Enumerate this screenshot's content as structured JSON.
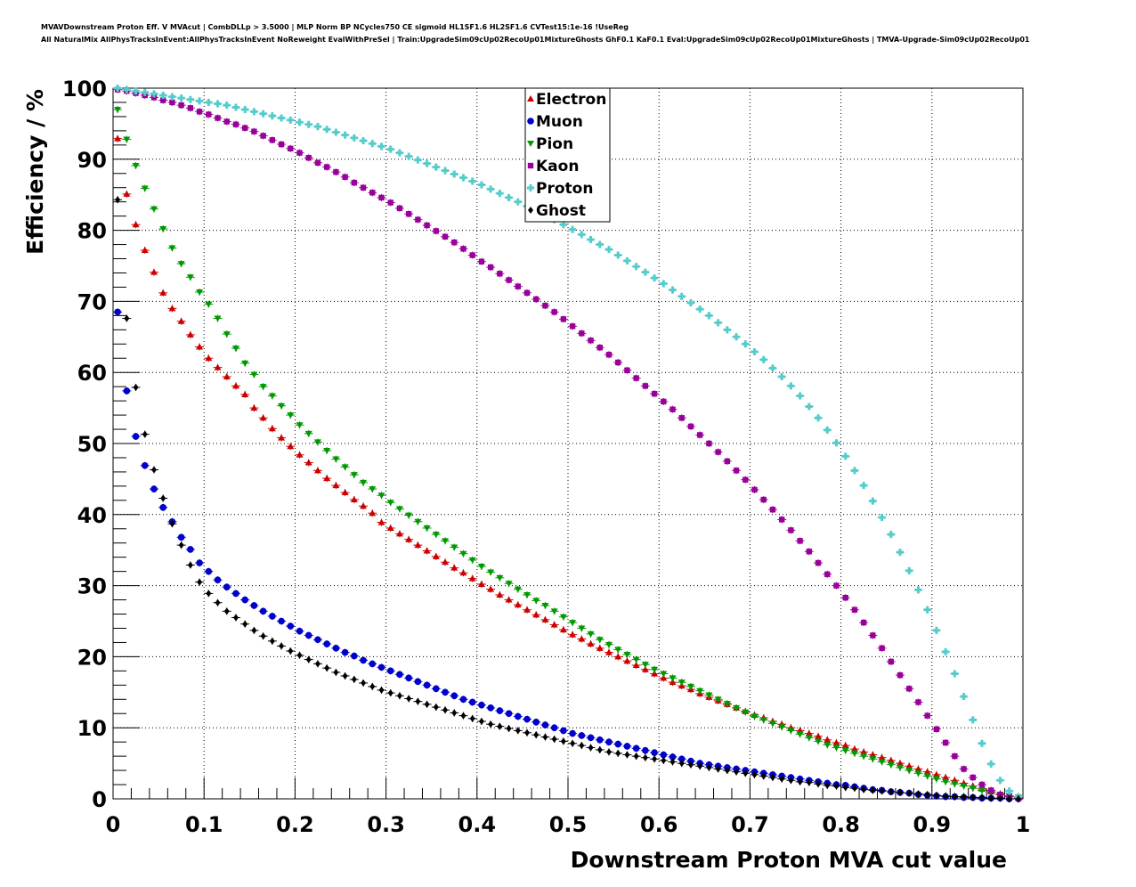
{
  "header": {
    "title_line1": "MVAVDownstream Proton Eff. V MVAcut | CombDLLp > 3.5000 | MLP Norm BP NCycles750 CE sigmoid HL1SF1.6 HL2SF1.6 CVTest15:1e-16 !UseReg",
    "title_line2": "All NaturalMix AllPhysTracksInEvent:AllPhysTracksInEvent NoReweight EvalWithPreSel | Train:UpgradeSim09cUp02RecoUp01MixtureGhosts GhF0.1 KaF0.1 Eval:UpgradeSim09cUp02RecoUp01MixtureGhosts | TMVA-Upgrade-Sim09cUp02RecoUp01"
  },
  "chart_data": {
    "type": "scatter",
    "title": "",
    "xlabel": "Downstream Proton MVA cut value",
    "ylabel": "Efficiency / %",
    "xlim": [
      0,
      1
    ],
    "ylim": [
      0,
      100
    ],
    "grid": true,
    "legend_position": "top-center",
    "xticks": [
      0,
      0.1,
      0.2,
      0.3,
      0.4,
      0.5,
      0.6,
      0.7,
      0.8,
      0.9,
      1
    ],
    "xtick_labels": [
      "0",
      "0.1",
      "0.2",
      "0.3",
      "0.4",
      "0.5",
      "0.6",
      "0.7",
      "0.8",
      "0.9",
      "1"
    ],
    "yticks": [
      0,
      10,
      20,
      30,
      40,
      50,
      60,
      70,
      80,
      90,
      100
    ],
    "ytick_labels": [
      "0",
      "10",
      "20",
      "30",
      "40",
      "50",
      "60",
      "70",
      "80",
      "90",
      "100"
    ],
    "x": [
      0.005,
      0.015,
      0.025,
      0.035,
      0.045,
      0.055,
      0.065,
      0.075,
      0.085,
      0.095,
      0.105,
      0.115,
      0.125,
      0.135,
      0.145,
      0.155,
      0.165,
      0.175,
      0.185,
      0.195,
      0.205,
      0.215,
      0.225,
      0.235,
      0.245,
      0.255,
      0.265,
      0.275,
      0.285,
      0.295,
      0.305,
      0.315,
      0.325,
      0.335,
      0.345,
      0.355,
      0.365,
      0.375,
      0.385,
      0.395,
      0.405,
      0.415,
      0.425,
      0.435,
      0.445,
      0.455,
      0.465,
      0.475,
      0.485,
      0.495,
      0.505,
      0.515,
      0.525,
      0.535,
      0.545,
      0.555,
      0.565,
      0.575,
      0.585,
      0.595,
      0.605,
      0.615,
      0.625,
      0.635,
      0.645,
      0.655,
      0.665,
      0.675,
      0.685,
      0.695,
      0.705,
      0.715,
      0.725,
      0.735,
      0.745,
      0.755,
      0.765,
      0.775,
      0.785,
      0.795,
      0.805,
      0.815,
      0.825,
      0.835,
      0.845,
      0.855,
      0.865,
      0.875,
      0.885,
      0.895,
      0.905,
      0.915,
      0.925,
      0.935,
      0.945,
      0.955,
      0.965,
      0.975,
      0.985,
      0.995
    ],
    "series": [
      {
        "name": "Electron",
        "color": "#cc0000",
        "marker": "triangle-up",
        "values": [
          92.9,
          85.1,
          80.8,
          77.2,
          74.1,
          71.2,
          69.0,
          67.2,
          65.3,
          63.6,
          62.0,
          60.7,
          59.4,
          58.1,
          56.9,
          55.0,
          53.6,
          52.1,
          50.8,
          49.6,
          48.4,
          47.3,
          46.2,
          45.1,
          44.1,
          43.1,
          42.1,
          41.2,
          40.2,
          38.9,
          38.1,
          37.3,
          36.5,
          35.7,
          34.9,
          34.1,
          33.3,
          32.5,
          31.8,
          31.0,
          30.2,
          29.5,
          28.7,
          28.0,
          27.3,
          26.6,
          25.9,
          25.2,
          24.5,
          23.8,
          23.1,
          22.5,
          21.8,
          21.2,
          20.6,
          20.0,
          19.4,
          18.8,
          18.2,
          17.6,
          17.0,
          16.4,
          15.9,
          15.4,
          14.8,
          14.3,
          13.8,
          13.3,
          12.8,
          12.3,
          11.8,
          11.4,
          10.9,
          10.5,
          10.0,
          9.6,
          9.2,
          8.8,
          8.3,
          7.9,
          7.5,
          7.0,
          6.6,
          6.2,
          5.8,
          5.4,
          5.0,
          4.6,
          4.2,
          3.8,
          3.4,
          3.0,
          2.6,
          2.2,
          1.8,
          1.4,
          1.0,
          0.7,
          0.4,
          0.1
        ]
      },
      {
        "name": "Muon",
        "color": "#0000cc",
        "marker": "circle",
        "values": [
          68.5,
          57.4,
          51.0,
          46.9,
          43.6,
          41.0,
          39.0,
          36.8,
          35.1,
          33.2,
          32.0,
          30.8,
          29.8,
          28.9,
          28.0,
          27.2,
          26.4,
          25.7,
          25.0,
          24.3,
          23.6,
          23.0,
          22.4,
          21.8,
          21.2,
          20.6,
          20.1,
          19.5,
          19.0,
          18.5,
          18.0,
          17.5,
          17.0,
          16.5,
          16.0,
          15.5,
          15.0,
          14.5,
          14.0,
          13.6,
          13.2,
          12.8,
          12.4,
          12.0,
          11.6,
          11.2,
          10.8,
          10.4,
          10.0,
          9.6,
          9.2,
          8.9,
          8.6,
          8.3,
          8.0,
          7.7,
          7.4,
          7.1,
          6.8,
          6.5,
          6.2,
          5.9,
          5.6,
          5.3,
          5.0,
          4.8,
          4.6,
          4.4,
          4.2,
          4.0,
          3.8,
          3.6,
          3.4,
          3.2,
          3.0,
          2.8,
          2.6,
          2.4,
          2.2,
          2.0,
          1.9,
          1.7,
          1.5,
          1.3,
          1.2,
          1.0,
          0.9,
          0.8,
          0.6,
          0.5,
          0.4,
          0.3,
          0.3,
          0.2,
          0.2,
          0.1,
          0.1,
          0.1,
          0.0,
          0.0
        ]
      },
      {
        "name": "Pion",
        "color": "#009900",
        "marker": "triangle-down",
        "values": [
          97.0,
          92.8,
          89.1,
          85.9,
          83.0,
          80.2,
          77.5,
          75.3,
          73.4,
          71.3,
          69.6,
          67.6,
          65.4,
          63.4,
          61.3,
          59.7,
          58.0,
          56.7,
          55.3,
          54.0,
          52.6,
          51.4,
          50.2,
          49.0,
          47.8,
          46.7,
          45.6,
          44.5,
          43.6,
          42.7,
          41.7,
          40.8,
          39.9,
          39.0,
          38.1,
          37.2,
          36.3,
          35.4,
          34.5,
          33.6,
          32.7,
          31.9,
          31.1,
          30.3,
          29.5,
          28.7,
          27.9,
          27.2,
          26.4,
          25.6,
          24.8,
          24.0,
          23.2,
          22.4,
          21.7,
          21.0,
          20.3,
          19.6,
          18.9,
          18.2,
          17.6,
          17.0,
          16.4,
          15.8,
          15.2,
          14.6,
          14.0,
          13.4,
          12.8,
          12.2,
          11.6,
          11.1,
          10.6,
          10.1,
          9.6,
          9.1,
          8.6,
          8.1,
          7.6,
          7.2,
          6.8,
          6.4,
          6.0,
          5.6,
          5.2,
          4.8,
          4.4,
          4.0,
          3.6,
          3.2,
          2.8,
          2.4,
          2.1,
          1.8,
          1.5,
          1.2,
          0.9,
          0.6,
          0.4,
          0.2
        ]
      },
      {
        "name": "Kaon",
        "color": "#990099",
        "marker": "square",
        "values": [
          99.8,
          99.6,
          99.3,
          99.0,
          98.7,
          98.3,
          98.0,
          97.6,
          97.2,
          96.7,
          96.3,
          95.8,
          95.3,
          94.9,
          94.4,
          93.9,
          93.3,
          92.7,
          92.1,
          91.5,
          90.9,
          90.2,
          89.5,
          88.9,
          88.2,
          87.5,
          86.7,
          86.0,
          85.3,
          84.6,
          83.9,
          83.1,
          82.3,
          81.5,
          80.7,
          79.9,
          79.1,
          78.3,
          77.4,
          76.5,
          75.6,
          74.8,
          73.9,
          73.0,
          72.1,
          71.2,
          70.3,
          69.4,
          68.5,
          67.5,
          66.5,
          65.5,
          64.5,
          63.5,
          62.5,
          61.4,
          60.3,
          59.2,
          58.1,
          57.0,
          55.9,
          54.8,
          53.6,
          52.4,
          51.2,
          50.0,
          48.8,
          47.5,
          46.2,
          44.9,
          43.5,
          42.1,
          40.7,
          39.3,
          37.8,
          36.3,
          34.8,
          33.2,
          31.6,
          30.0,
          28.3,
          26.6,
          24.8,
          23.0,
          21.2,
          19.3,
          17.4,
          15.5,
          13.6,
          11.7,
          9.8,
          7.9,
          6.0,
          4.2,
          3.0,
          2.0,
          1.2,
          0.6,
          0.3,
          0.1
        ]
      },
      {
        "name": "Proton",
        "color": "#55cccc",
        "marker": "cross",
        "values": [
          100.0,
          99.8,
          99.6,
          99.4,
          99.2,
          99.0,
          98.8,
          98.6,
          98.4,
          98.2,
          98.0,
          97.8,
          97.6,
          97.3,
          97.0,
          96.7,
          96.4,
          96.1,
          95.8,
          95.5,
          95.2,
          94.9,
          94.6,
          94.2,
          93.8,
          93.4,
          93.0,
          92.6,
          92.2,
          91.8,
          91.4,
          90.9,
          90.4,
          89.9,
          89.4,
          88.9,
          88.4,
          87.9,
          87.4,
          86.9,
          86.4,
          85.8,
          85.2,
          84.6,
          84.0,
          83.4,
          82.8,
          82.2,
          81.5,
          80.8,
          80.1,
          79.4,
          78.7,
          78.0,
          77.3,
          76.5,
          75.7,
          74.9,
          74.1,
          73.3,
          72.5,
          71.6,
          70.7,
          69.8,
          68.9,
          68.0,
          67.0,
          66.0,
          65.0,
          64.0,
          62.9,
          61.8,
          60.6,
          59.4,
          58.1,
          56.7,
          55.2,
          53.6,
          51.9,
          50.1,
          48.2,
          46.2,
          44.1,
          41.9,
          39.6,
          37.2,
          34.7,
          32.1,
          29.4,
          26.6,
          23.7,
          20.7,
          17.6,
          14.4,
          11.1,
          7.8,
          4.9,
          2.6,
          1.1,
          0.3
        ]
      },
      {
        "name": "Ghost",
        "color": "#000000",
        "marker": "diamond",
        "values": [
          84.3,
          67.6,
          57.9,
          51.3,
          46.3,
          42.3,
          38.7,
          35.7,
          32.9,
          30.5,
          28.9,
          27.6,
          26.4,
          25.5,
          24.6,
          23.7,
          22.9,
          22.2,
          21.5,
          20.8,
          20.2,
          19.6,
          19.0,
          18.4,
          17.8,
          17.3,
          16.8,
          16.3,
          15.8,
          15.3,
          14.9,
          14.5,
          14.1,
          13.7,
          13.3,
          12.9,
          12.5,
          12.1,
          11.7,
          11.3,
          10.9,
          10.5,
          10.2,
          9.9,
          9.6,
          9.3,
          9.0,
          8.7,
          8.4,
          8.1,
          7.8,
          7.5,
          7.2,
          6.9,
          6.6,
          6.4,
          6.2,
          6.0,
          5.8,
          5.6,
          5.4,
          5.2,
          5.0,
          4.8,
          4.6,
          4.4,
          4.2,
          4.0,
          3.8,
          3.6,
          3.4,
          3.2,
          3.0,
          2.8,
          2.6,
          2.4,
          2.3,
          2.1,
          1.9,
          1.8,
          1.6,
          1.5,
          1.3,
          1.2,
          1.1,
          1.0,
          0.9,
          0.8,
          0.7,
          0.6,
          0.5,
          0.4,
          0.3,
          0.3,
          0.2,
          0.2,
          0.1,
          0.1,
          0.0,
          0.0
        ]
      }
    ]
  }
}
